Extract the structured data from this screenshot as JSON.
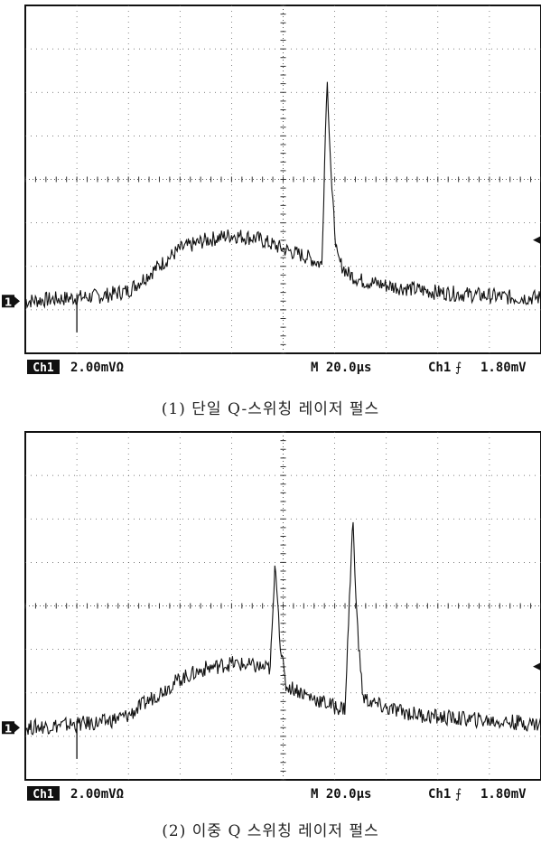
{
  "scopes": [
    {
      "id": "scope1",
      "caption": "(1) 단일 Q-스위칭 레이저 펄스",
      "channel_badge": "Ch1",
      "channel_scale": "2.00mVΩ",
      "timebase": "M 20.0μs",
      "trigger_channel": "Ch1",
      "trigger_symbol": "⨍",
      "trigger_level": "1.80mV",
      "ground_marker": "1",
      "trigger_marker": "◀"
    },
    {
      "id": "scope2",
      "caption": "(2) 이중 Q 스위칭 레이저 펄스",
      "channel_badge": "Ch1",
      "channel_scale": "2.00mVΩ",
      "timebase": "M 20.0μs",
      "trigger_channel": "Ch1",
      "trigger_symbol": "⨍",
      "trigger_level": "1.80mV",
      "ground_marker": "1",
      "trigger_marker": "◀"
    }
  ],
  "chart_data": [
    {
      "type": "line",
      "title": "(1) 단일 Q-스위칭 레이저 펄스",
      "xlabel": "M 20.0μs/div",
      "ylabel": "Ch1 2.00mV/div",
      "xlim": [
        0,
        200
      ],
      "ylim": [
        -1.5,
        8.5
      ],
      "grid": true,
      "series": [
        {
          "x": [
            0,
            10,
            20,
            30,
            40,
            50,
            60,
            70,
            80,
            90,
            100,
            110,
            115,
            117,
            119,
            121,
            125,
            130,
            140,
            150,
            160,
            170,
            180,
            190,
            200
          ],
          "y": [
            0.0,
            0.05,
            0.1,
            0.15,
            0.3,
            0.9,
            1.5,
            1.75,
            1.9,
            1.8,
            1.5,
            1.25,
            1.05,
            6.5,
            3.0,
            1.2,
            0.8,
            0.6,
            0.45,
            0.35,
            0.25,
            0.2,
            0.15,
            0.1,
            0.1
          ]
        }
      ]
    },
    {
      "type": "line",
      "title": "(2) 이중 Q 스위칭 레이저 펄스",
      "xlabel": "M 20.0μs/div",
      "ylabel": "Ch1 2.00mV/div",
      "xlim": [
        0,
        200
      ],
      "ylim": [
        -1.5,
        8.5
      ],
      "grid": true,
      "series": [
        {
          "x": [
            0,
            10,
            20,
            30,
            40,
            50,
            60,
            70,
            80,
            90,
            95,
            97,
            99,
            101,
            105,
            110,
            120,
            124,
            127,
            129,
            131,
            135,
            140,
            150,
            160,
            170,
            180,
            190,
            200
          ],
          "y": [
            0.0,
            0.05,
            0.1,
            0.15,
            0.35,
            0.9,
            1.4,
            1.7,
            1.85,
            1.75,
            1.7,
            4.8,
            2.3,
            1.2,
            1.1,
            0.9,
            0.6,
            0.55,
            6.0,
            2.6,
            0.85,
            0.7,
            0.55,
            0.4,
            0.3,
            0.25,
            0.2,
            0.15,
            0.1
          ]
        }
      ]
    }
  ]
}
